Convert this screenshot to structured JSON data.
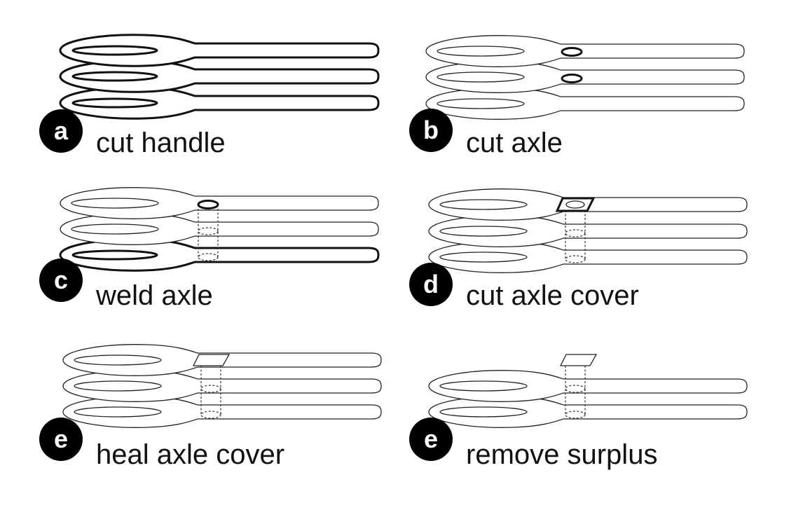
{
  "figure": {
    "panels": [
      {
        "id": "a",
        "label": "a",
        "title": "cut handle"
      },
      {
        "id": "b",
        "label": "b",
        "title": "cut axle"
      },
      {
        "id": "c",
        "label": "c",
        "title": "weld axle"
      },
      {
        "id": "d",
        "label": "d",
        "title": "cut axle cover"
      },
      {
        "id": "e1",
        "label": "e",
        "title": "heal axle cover"
      },
      {
        "id": "e2",
        "label": "e",
        "title": "remove surplus"
      }
    ]
  }
}
